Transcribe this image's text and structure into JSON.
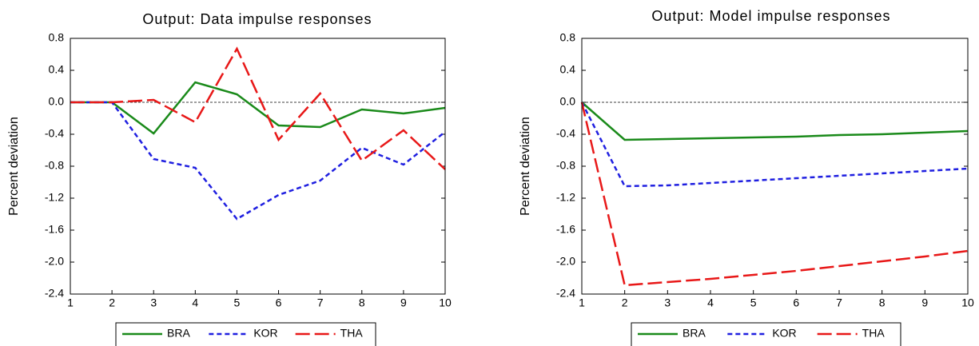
{
  "chart_data": [
    {
      "type": "line",
      "title": "Output: Data impulse responses",
      "y_label": "Percent deviation",
      "x": [
        1,
        2,
        3,
        4,
        5,
        6,
        7,
        8,
        9,
        10
      ],
      "xlim": [
        1,
        10
      ],
      "xticks": [
        1,
        2,
        3,
        4,
        5,
        6,
        7,
        8,
        9,
        10
      ],
      "ylim": [
        -2.4,
        0.8
      ],
      "yticks": [
        {
          "value": -2.4,
          "label": "-2.4"
        },
        {
          "value": -2,
          "label": "-2.0"
        },
        -1.6,
        -1.2,
        -0.8,
        -0.4,
        {
          "value": 0,
          "label": "0.0"
        },
        0.4,
        0.8
      ],
      "zero_line": true,
      "legend": "bottom",
      "series": [
        {
          "name": "BRA",
          "color": "#1a8a1a",
          "style": "solid",
          "values": [
            0,
            0,
            -0.39,
            0.25,
            0.1,
            -0.29,
            -0.31,
            -0.09,
            -0.14,
            -0.07
          ]
        },
        {
          "name": "KOR",
          "color": "#1f1fe0",
          "style": "dashed",
          "values": [
            0,
            0,
            -0.71,
            -0.82,
            -1.46,
            -1.16,
            -0.98,
            -0.57,
            -0.78,
            -0.37
          ]
        },
        {
          "name": "THA",
          "color": "#e81818",
          "style": "longdash",
          "values": [
            0,
            0,
            0.03,
            -0.25,
            0.67,
            -0.47,
            0.11,
            -0.73,
            -0.35,
            -0.84
          ]
        }
      ]
    },
    {
      "type": "line",
      "title": "Output: Model impulse responses",
      "y_label": "Percent deviation",
      "x": [
        1,
        2,
        3,
        4,
        5,
        6,
        7,
        8,
        9,
        10
      ],
      "xlim": [
        1,
        10
      ],
      "xticks": [
        1,
        2,
        3,
        4,
        5,
        6,
        7,
        8,
        9,
        10
      ],
      "ylim": [
        -2.4,
        0.8
      ],
      "yticks": [
        {
          "value": -2.4,
          "label": "-2.4"
        },
        {
          "value": -2,
          "label": "-2.0"
        },
        -1.6,
        -1.2,
        -0.8,
        -0.4,
        {
          "value": 0,
          "label": "0.0"
        },
        0.4,
        0.8
      ],
      "zero_line": true,
      "legend": "bottom",
      "series": [
        {
          "name": "BRA",
          "color": "#1a8a1a",
          "style": "solid",
          "values": [
            0,
            -0.47,
            -0.46,
            -0.45,
            -0.44,
            -0.43,
            -0.41,
            -0.4,
            -0.38,
            -0.36
          ]
        },
        {
          "name": "KOR",
          "color": "#1f1fe0",
          "style": "dashed",
          "values": [
            0,
            -1.05,
            -1.04,
            -1.01,
            -0.98,
            -0.95,
            -0.92,
            -0.89,
            -0.86,
            -0.83
          ]
        },
        {
          "name": "THA",
          "color": "#e81818",
          "style": "longdash",
          "values": [
            0,
            -2.29,
            -2.25,
            -2.21,
            -2.16,
            -2.11,
            -2.05,
            -1.99,
            -1.93,
            -1.86
          ]
        }
      ]
    }
  ]
}
